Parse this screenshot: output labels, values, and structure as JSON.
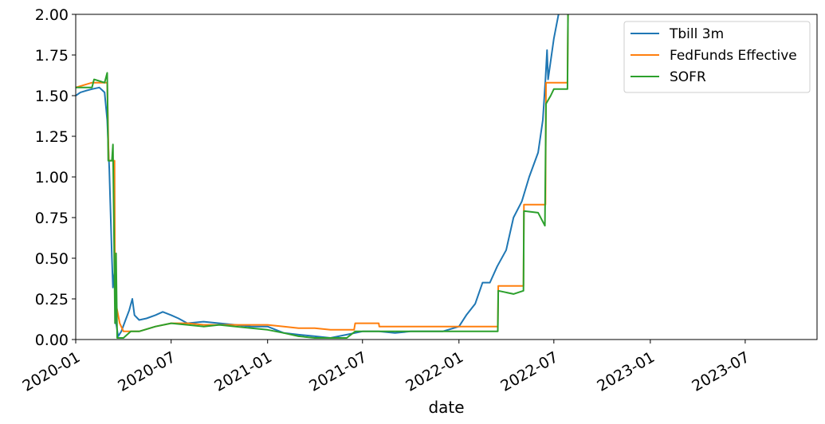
{
  "chart_data": {
    "type": "line",
    "title": "",
    "xlabel": "date",
    "ylabel": "",
    "xlim": [
      "2020-01-01",
      "2023-11-15"
    ],
    "ylim": [
      0,
      2.0
    ],
    "grid": false,
    "legend_position": "top-right",
    "x_ticks": [
      "2020-01",
      "2020-07",
      "2021-01",
      "2021-07",
      "2022-01",
      "2022-07",
      "2023-01",
      "2023-07"
    ],
    "y_ticks": [
      "0.00",
      "0.25",
      "0.50",
      "0.75",
      "1.00",
      "1.25",
      "1.50",
      "1.75",
      "2.00"
    ],
    "series": [
      {
        "name": "Tbill 3m",
        "color": "#1f77b4",
        "points": [
          [
            "2020-01-01",
            1.5
          ],
          [
            "2020-01-10",
            1.52
          ],
          [
            "2020-01-20",
            1.53
          ],
          [
            "2020-02-01",
            1.54
          ],
          [
            "2020-02-15",
            1.55
          ],
          [
            "2020-02-25",
            1.52
          ],
          [
            "2020-03-01",
            1.35
          ],
          [
            "2020-03-05",
            1.05
          ],
          [
            "2020-03-10",
            0.5
          ],
          [
            "2020-03-12",
            0.32
          ],
          [
            "2020-03-15",
            0.42
          ],
          [
            "2020-03-18",
            0.1
          ],
          [
            "2020-03-22",
            0.02
          ],
          [
            "2020-03-28",
            0.05
          ],
          [
            "2020-04-05",
            0.12
          ],
          [
            "2020-04-12",
            0.18
          ],
          [
            "2020-04-18",
            0.25
          ],
          [
            "2020-04-22",
            0.15
          ],
          [
            "2020-05-01",
            0.12
          ],
          [
            "2020-05-15",
            0.13
          ],
          [
            "2020-06-01",
            0.15
          ],
          [
            "2020-06-15",
            0.17
          ],
          [
            "2020-07-01",
            0.15
          ],
          [
            "2020-07-15",
            0.13
          ],
          [
            "2020-08-01",
            0.1
          ],
          [
            "2020-09-01",
            0.11
          ],
          [
            "2020-10-01",
            0.1
          ],
          [
            "2020-11-01",
            0.09
          ],
          [
            "2020-12-01",
            0.08
          ],
          [
            "2021-01-01",
            0.08
          ],
          [
            "2021-02-01",
            0.04
          ],
          [
            "2021-03-01",
            0.03
          ],
          [
            "2021-04-01",
            0.02
          ],
          [
            "2021-05-01",
            0.01
          ],
          [
            "2021-06-01",
            0.03
          ],
          [
            "2021-07-01",
            0.05
          ],
          [
            "2021-08-01",
            0.05
          ],
          [
            "2021-09-01",
            0.04
          ],
          [
            "2021-10-01",
            0.05
          ],
          [
            "2021-11-01",
            0.05
          ],
          [
            "2021-12-01",
            0.05
          ],
          [
            "2022-01-01",
            0.08
          ],
          [
            "2022-01-15",
            0.15
          ],
          [
            "2022-02-01",
            0.22
          ],
          [
            "2022-02-15",
            0.35
          ],
          [
            "2022-03-01",
            0.35
          ],
          [
            "2022-03-15",
            0.45
          ],
          [
            "2022-04-01",
            0.55
          ],
          [
            "2022-04-15",
            0.75
          ],
          [
            "2022-05-01",
            0.85
          ],
          [
            "2022-05-15",
            1.0
          ],
          [
            "2022-06-01",
            1.15
          ],
          [
            "2022-06-10",
            1.35
          ],
          [
            "2022-06-15",
            1.6
          ],
          [
            "2022-06-18",
            1.78
          ],
          [
            "2022-06-20",
            1.6
          ],
          [
            "2022-07-01",
            1.85
          ],
          [
            "2022-07-10",
            2.0
          ]
        ]
      },
      {
        "name": "FedFunds Effective",
        "color": "#ff7f0e",
        "points": [
          [
            "2020-01-01",
            1.55
          ],
          [
            "2020-02-01",
            1.58
          ],
          [
            "2020-03-01",
            1.58
          ],
          [
            "2020-03-04",
            1.1
          ],
          [
            "2020-03-15",
            1.1
          ],
          [
            "2020-03-16",
            0.25
          ],
          [
            "2020-03-25",
            0.1
          ],
          [
            "2020-04-01",
            0.05
          ],
          [
            "2020-05-01",
            0.05
          ],
          [
            "2020-06-01",
            0.08
          ],
          [
            "2020-07-01",
            0.1
          ],
          [
            "2020-08-01",
            0.1
          ],
          [
            "2020-09-01",
            0.09
          ],
          [
            "2020-10-01",
            0.09
          ],
          [
            "2020-11-01",
            0.09
          ],
          [
            "2020-12-01",
            0.09
          ],
          [
            "2021-01-01",
            0.09
          ],
          [
            "2021-02-01",
            0.08
          ],
          [
            "2021-03-01",
            0.07
          ],
          [
            "2021-04-01",
            0.07
          ],
          [
            "2021-05-01",
            0.06
          ],
          [
            "2021-06-15",
            0.06
          ],
          [
            "2021-06-17",
            0.1
          ],
          [
            "2021-08-01",
            0.1
          ],
          [
            "2021-08-02",
            0.08
          ],
          [
            "2022-03-16",
            0.08
          ],
          [
            "2022-03-17",
            0.33
          ],
          [
            "2022-05-04",
            0.33
          ],
          [
            "2022-05-05",
            0.83
          ],
          [
            "2022-06-15",
            0.83
          ],
          [
            "2022-06-16",
            1.58
          ],
          [
            "2022-07-27",
            1.58
          ],
          [
            "2022-07-28",
            2.0
          ]
        ]
      },
      {
        "name": "SOFR",
        "color": "#2ca02c",
        "points": [
          [
            "2020-01-01",
            1.55
          ],
          [
            "2020-01-15",
            1.55
          ],
          [
            "2020-02-01",
            1.55
          ],
          [
            "2020-02-05",
            1.6
          ],
          [
            "2020-02-25",
            1.58
          ],
          [
            "2020-03-01",
            1.64
          ],
          [
            "2020-03-03",
            1.1
          ],
          [
            "2020-03-10",
            1.1
          ],
          [
            "2020-03-12",
            1.2
          ],
          [
            "2020-03-16",
            0.1
          ],
          [
            "2020-03-18",
            0.53
          ],
          [
            "2020-03-20",
            0.01
          ],
          [
            "2020-04-01",
            0.01
          ],
          [
            "2020-04-15",
            0.05
          ],
          [
            "2020-05-01",
            0.05
          ],
          [
            "2020-06-01",
            0.08
          ],
          [
            "2020-07-01",
            0.1
          ],
          [
            "2020-08-01",
            0.09
          ],
          [
            "2020-09-01",
            0.08
          ],
          [
            "2020-10-01",
            0.09
          ],
          [
            "2020-11-01",
            0.08
          ],
          [
            "2020-12-01",
            0.07
          ],
          [
            "2021-01-01",
            0.06
          ],
          [
            "2021-02-01",
            0.04
          ],
          [
            "2021-03-01",
            0.02
          ],
          [
            "2021-04-01",
            0.01
          ],
          [
            "2021-05-01",
            0.01
          ],
          [
            "2021-06-01",
            0.01
          ],
          [
            "2021-06-17",
            0.05
          ],
          [
            "2021-08-01",
            0.05
          ],
          [
            "2021-09-01",
            0.05
          ],
          [
            "2021-10-01",
            0.05
          ],
          [
            "2021-11-01",
            0.05
          ],
          [
            "2021-12-01",
            0.05
          ],
          [
            "2022-03-16",
            0.05
          ],
          [
            "2022-03-17",
            0.3
          ],
          [
            "2022-04-15",
            0.28
          ],
          [
            "2022-05-04",
            0.3
          ],
          [
            "2022-05-05",
            0.79
          ],
          [
            "2022-06-01",
            0.78
          ],
          [
            "2022-06-14",
            0.7
          ],
          [
            "2022-06-16",
            1.45
          ],
          [
            "2022-06-25",
            1.5
          ],
          [
            "2022-07-01",
            1.54
          ],
          [
            "2022-07-27",
            1.54
          ],
          [
            "2022-07-28",
            2.0
          ]
        ]
      }
    ]
  }
}
